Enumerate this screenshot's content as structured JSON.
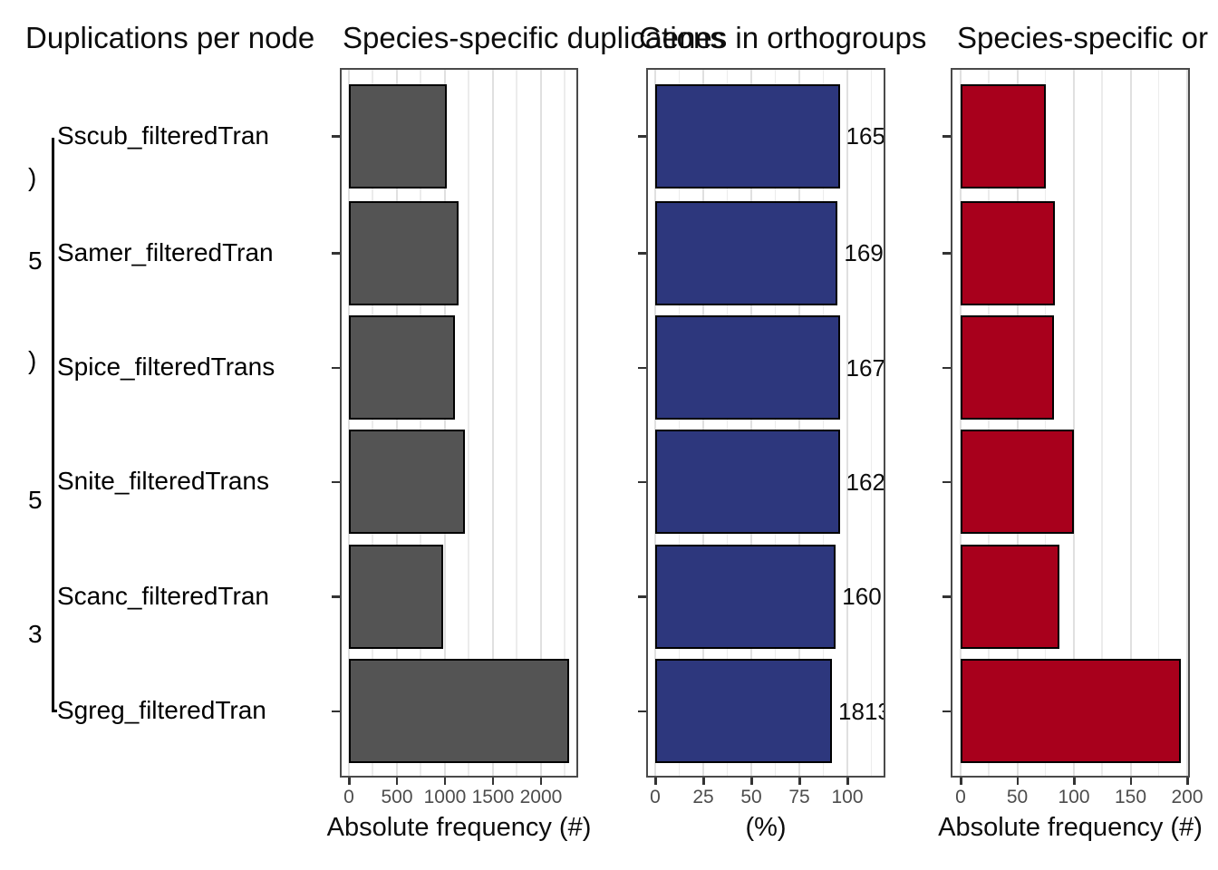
{
  "titles": [
    {
      "text": "Duplications per node"
    },
    {
      "text": "Species-specific duplications"
    },
    {
      "text": "Genes in orthogroups"
    },
    {
      "text": "Species-specific or"
    }
  ],
  "tree": {
    "tip_labels": [
      "Sscub_filteredTran",
      "Samer_filteredTran",
      "Spice_filteredTrans",
      "Snite_filteredTrans",
      "Scanc_filteredTran",
      "Sgreg_filteredTran"
    ],
    "node_labels_partial": [
      ")",
      "5",
      ")",
      "5",
      "3"
    ]
  },
  "chart_data": [
    {
      "type": "bar",
      "title": "Species-specific duplications",
      "categories": [
        "Sscub_filteredTran",
        "Samer_filteredTran",
        "Spice_filteredTrans",
        "Snite_filteredTrans",
        "Scanc_filteredTran",
        "Sgreg_filteredTran"
      ],
      "values": [
        1020,
        1140,
        1100,
        1210,
        980,
        2290
      ],
      "xlabel": "Absolute frequency (#)",
      "xticks": [
        0,
        500,
        1000,
        1500,
        2000
      ],
      "xlim": [
        0,
        2387
      ],
      "minor_step": 250,
      "bar_color": "#545454",
      "bar_border_color": "#000000",
      "grid": true,
      "legend": "none"
    },
    {
      "type": "bar",
      "title": "Genes in orthogroups",
      "categories": [
        "Sscub_filteredTran",
        "Samer_filteredTran",
        "Spice_filteredTrans",
        "Snite_filteredTrans",
        "Scanc_filteredTran",
        "Sgreg_filteredTran"
      ],
      "values": [
        96,
        95,
        96,
        96,
        94,
        92
      ],
      "bar_labels": [
        "165",
        "169",
        "167",
        "162",
        "160",
        "1813"
      ],
      "xlabel": "(%)",
      "xticks": [
        0,
        25,
        50,
        75,
        100
      ],
      "xlim": [
        0,
        119.8
      ],
      "minor_step": 12.5,
      "bar_color": "#2d377d",
      "bar_border_color": "#000000",
      "grid": true,
      "legend": "none"
    },
    {
      "type": "bar",
      "title": "Species-specific or",
      "categories": [
        "Sscub_filteredTran",
        "Samer_filteredTran",
        "Spice_filteredTrans",
        "Snite_filteredTrans",
        "Scanc_filteredTran",
        "Sgreg_filteredTran"
      ],
      "values": [
        75,
        83,
        82,
        100,
        87,
        194
      ],
      "xlabel": "Absolute frequency (#)",
      "xticks": [
        0,
        50,
        100,
        150,
        200
      ],
      "xlim": [
        0,
        202.4
      ],
      "minor_step": 25,
      "bar_color": "#a8001c",
      "bar_border_color": "#000000",
      "grid": true,
      "legend": "none"
    }
  ]
}
